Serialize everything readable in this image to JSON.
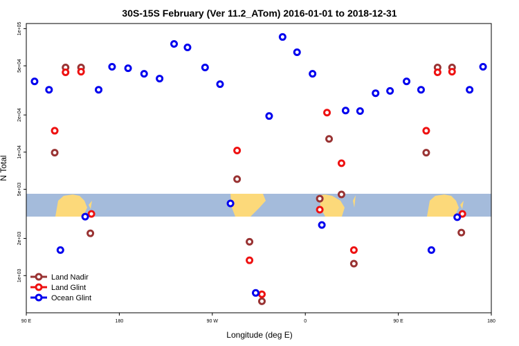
{
  "chart_data": {
    "type": "scatter",
    "title": "30S-15S February (Ver 11.2_ATom)   2016-01-01 to 2018-12-31",
    "x_label": "Longitude (deg E)",
    "y_label": "N Total",
    "log_y": true,
    "legend_position": "lower left",
    "xlim": [
      90,
      540
    ],
    "ylim": [
      500,
      110000
    ],
    "xticks": [
      {
        "value": 90,
        "label": "90 E"
      },
      180,
      {
        "value": 270,
        "label": "90 W"
      },
      {
        "value": 360,
        "label": "0"
      },
      {
        "value": 450,
        "label": "90 E"
      },
      {
        "value": 540,
        "label": "180"
      }
    ],
    "yticks": [
      {
        "value": 1000,
        "label": "1e+03"
      },
      {
        "value": 2000,
        "label": "2e+03"
      },
      {
        "value": 5000,
        "label": "5e+03"
      },
      {
        "value": 10000,
        "label": "1e+04"
      },
      {
        "value": 20000,
        "label": "2e+04"
      },
      {
        "value": 50000,
        "label": "5e+04"
      },
      {
        "value": 100000,
        "label": "1e+05"
      }
    ],
    "series": [
      {
        "name": "Land Nadir",
        "color": "#993333",
        "x": [
          117.5,
          128,
          143,
          152,
          294,
          306,
          318,
          374,
          383,
          395,
          407,
          477,
          488,
          502,
          511
        ],
        "values": [
          9900,
          48500,
          48500,
          2200,
          6040,
          1880,
          620,
          4200,
          12800,
          4540,
          1250,
          9900,
          48500,
          48500,
          2230
        ]
      },
      {
        "name": "Land Glint",
        "color": "#ee1111",
        "x": [
          117.5,
          128,
          143,
          153,
          294,
          306,
          318,
          374,
          381,
          395,
          407,
          477,
          488,
          502,
          512
        ],
        "values": [
          14900,
          44300,
          44800,
          3160,
          10300,
          1330,
          706,
          3420,
          20900,
          8130,
          1610,
          14900,
          44300,
          44800,
          3160
        ]
      },
      {
        "name": "Ocean Glint",
        "color": "#0000ee",
        "x": [
          98,
          112,
          123,
          147,
          160,
          173,
          188.5,
          204,
          219,
          233,
          246,
          263,
          277.5,
          287.6,
          312,
          325,
          338,
          352,
          367,
          376,
          399,
          413,
          428,
          442,
          458,
          472,
          482,
          507,
          519,
          532
        ],
        "values": [
          37400,
          32000,
          1610,
          3000,
          32000,
          49100,
          47800,
          43100,
          39400,
          75200,
          70500,
          48500,
          35500,
          3840,
          724,
          19600,
          85600,
          64400,
          43100,
          2570,
          21700,
          21500,
          30000,
          31300,
          37400,
          32000,
          1610,
          2970,
          32000,
          49100
        ]
      }
    ]
  }
}
